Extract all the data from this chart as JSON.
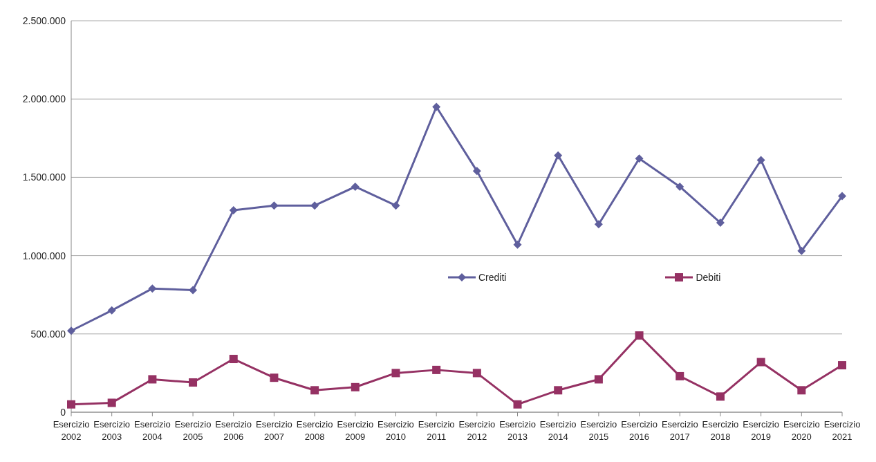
{
  "chart_data": {
    "type": "line",
    "categories": [
      "Esercizio 2002",
      "Esercizio 2003",
      "Esercizio 2004",
      "Esercizio 2005",
      "Esercizio 2006",
      "Esercizio 2007",
      "Esercizio 2008",
      "Esercizio 2009",
      "Esercizio 2010",
      "Esercizio 2011",
      "Esercizio 2012",
      "Esercizio 2013",
      "Esercizio 2014",
      "Esercizio 2015",
      "Esercizio 2016",
      "Esercizio 2017",
      "Esercizio 2018",
      "Esercizio 2019",
      "Esercizio 2020",
      "Esercizio 2021"
    ],
    "series": [
      {
        "name": "Crediti",
        "color": "#5f5f9d",
        "marker": "diamond",
        "values": [
          520000,
          650000,
          790000,
          780000,
          1290000,
          1320000,
          1320000,
          1440000,
          1320000,
          1950000,
          1540000,
          1070000,
          1640000,
          1200000,
          1620000,
          1440000,
          1210000,
          1610000,
          1030000,
          1380000
        ]
      },
      {
        "name": "Debiti",
        "color": "#953163",
        "marker": "square",
        "values": [
          50000,
          60000,
          210000,
          190000,
          340000,
          220000,
          140000,
          160000,
          250000,
          270000,
          250000,
          50000,
          140000,
          210000,
          490000,
          230000,
          100000,
          320000,
          140000,
          300000
        ]
      }
    ],
    "ylim": [
      0,
      2500000
    ],
    "yticks": [
      {
        "value": 0,
        "label": "0"
      },
      {
        "value": 500000,
        "label": "500.000"
      },
      {
        "value": 1000000,
        "label": "1.000.000"
      },
      {
        "value": 1500000,
        "label": "1.500.000"
      },
      {
        "value": 2000000,
        "label": "2.000.000"
      },
      {
        "value": 2500000,
        "label": "2.500.000"
      }
    ],
    "grid": "y",
    "legend": "center",
    "line_style": "solid"
  }
}
